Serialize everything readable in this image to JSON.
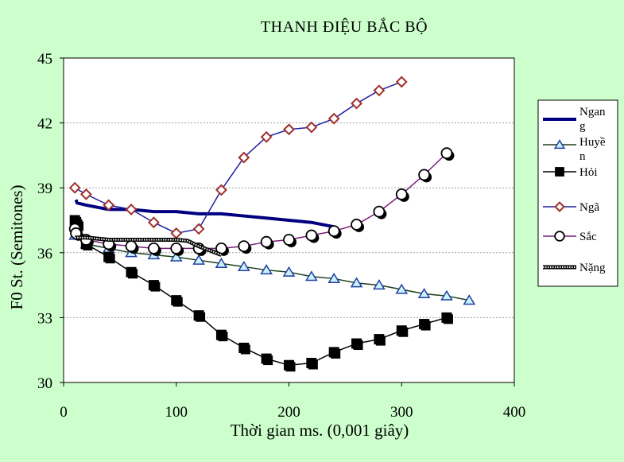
{
  "chart_data": {
    "type": "line",
    "title": "THANH ĐIỆU BẮC BỘ",
    "xlabel": "Thời gian ms. (0,001 giây)",
    "ylabel": "F0 St. (Semitones)",
    "xlim": [
      0,
      400
    ],
    "ylim": [
      30,
      45
    ],
    "x_ticks": [
      0,
      100,
      200,
      300,
      400
    ],
    "y_ticks": [
      30,
      33,
      36,
      39,
      42,
      45
    ],
    "grid": "horizontal dashed",
    "legend_position": "right",
    "series": [
      {
        "name": "Ngang",
        "marker": "none",
        "color": "#000080",
        "line_width": 4,
        "points": [
          [
            11,
            38.45
          ],
          [
            12,
            38.3
          ],
          [
            20,
            38.2
          ],
          [
            30,
            38.1
          ],
          [
            40,
            38.0
          ],
          [
            60,
            38.0
          ],
          [
            80,
            37.9
          ],
          [
            100,
            37.9
          ],
          [
            120,
            37.8
          ],
          [
            140,
            37.8
          ],
          [
            160,
            37.7
          ],
          [
            180,
            37.6
          ],
          [
            200,
            37.5
          ],
          [
            220,
            37.4
          ],
          [
            240,
            37.2
          ]
        ]
      },
      {
        "name": "Huyền",
        "marker": "triangle",
        "color": "#1f3f1f",
        "line_width": 1.5,
        "points": [
          [
            10,
            36.8
          ],
          [
            20,
            36.4
          ],
          [
            40,
            36.2
          ],
          [
            60,
            36.0
          ],
          [
            80,
            35.9
          ],
          [
            100,
            35.8
          ],
          [
            120,
            35.65
          ],
          [
            140,
            35.5
          ],
          [
            160,
            35.35
          ],
          [
            180,
            35.2
          ],
          [
            200,
            35.1
          ],
          [
            220,
            34.9
          ],
          [
            240,
            34.8
          ],
          [
            260,
            34.6
          ],
          [
            280,
            34.5
          ],
          [
            300,
            34.3
          ],
          [
            320,
            34.1
          ],
          [
            340,
            34.0
          ],
          [
            360,
            33.8
          ]
        ]
      },
      {
        "name": "Hỏi",
        "marker": "square",
        "color": "#000000",
        "line_width": 1.5,
        "points": [
          [
            10,
            37.5
          ],
          [
            12,
            37.3
          ],
          [
            20,
            36.4
          ],
          [
            40,
            35.8
          ],
          [
            60,
            35.1
          ],
          [
            80,
            34.5
          ],
          [
            100,
            33.8
          ],
          [
            120,
            33.1
          ],
          [
            140,
            32.2
          ],
          [
            160,
            31.6
          ],
          [
            180,
            31.1
          ],
          [
            200,
            30.8
          ],
          [
            220,
            30.9
          ],
          [
            240,
            31.4
          ],
          [
            260,
            31.8
          ],
          [
            280,
            32.0
          ],
          [
            300,
            32.4
          ],
          [
            320,
            32.7
          ],
          [
            340,
            33.0
          ]
        ]
      },
      {
        "name": "Ngã",
        "marker": "diamond",
        "color": "#1f1f9f",
        "line_width": 1.5,
        "points": [
          [
            10,
            39.0
          ],
          [
            20,
            38.7
          ],
          [
            40,
            38.2
          ],
          [
            60,
            38.0
          ],
          [
            80,
            37.4
          ],
          [
            100,
            36.9
          ],
          [
            120,
            37.1
          ],
          [
            140,
            38.9
          ],
          [
            160,
            40.4
          ],
          [
            180,
            41.35
          ],
          [
            200,
            41.7
          ],
          [
            220,
            41.8
          ],
          [
            240,
            42.2
          ],
          [
            260,
            42.9
          ],
          [
            280,
            43.5
          ],
          [
            300,
            43.9
          ]
        ]
      },
      {
        "name": "Sắc",
        "marker": "circle",
        "color": "#7a1f7a",
        "line_width": 1.5,
        "points": [
          [
            10,
            37.1
          ],
          [
            11,
            36.9
          ],
          [
            20,
            36.6
          ],
          [
            40,
            36.4
          ],
          [
            60,
            36.3
          ],
          [
            80,
            36.2
          ],
          [
            100,
            36.2
          ],
          [
            120,
            36.2
          ],
          [
            140,
            36.2
          ],
          [
            160,
            36.3
          ],
          [
            180,
            36.5
          ],
          [
            200,
            36.6
          ],
          [
            220,
            36.8
          ],
          [
            240,
            37.0
          ],
          [
            260,
            37.3
          ],
          [
            280,
            37.9
          ],
          [
            300,
            38.7
          ],
          [
            320,
            39.6
          ],
          [
            340,
            40.6
          ]
        ]
      },
      {
        "name": "Nặng",
        "marker": "none",
        "color": "#000000",
        "line_width": 4,
        "dashed": true,
        "points": [
          [
            10,
            36.7
          ],
          [
            20,
            36.7
          ],
          [
            40,
            36.6
          ],
          [
            60,
            36.6
          ],
          [
            80,
            36.6
          ],
          [
            100,
            36.6
          ],
          [
            110,
            36.55
          ],
          [
            120,
            36.3
          ],
          [
            130,
            36.1
          ],
          [
            140,
            35.9
          ]
        ]
      }
    ]
  }
}
